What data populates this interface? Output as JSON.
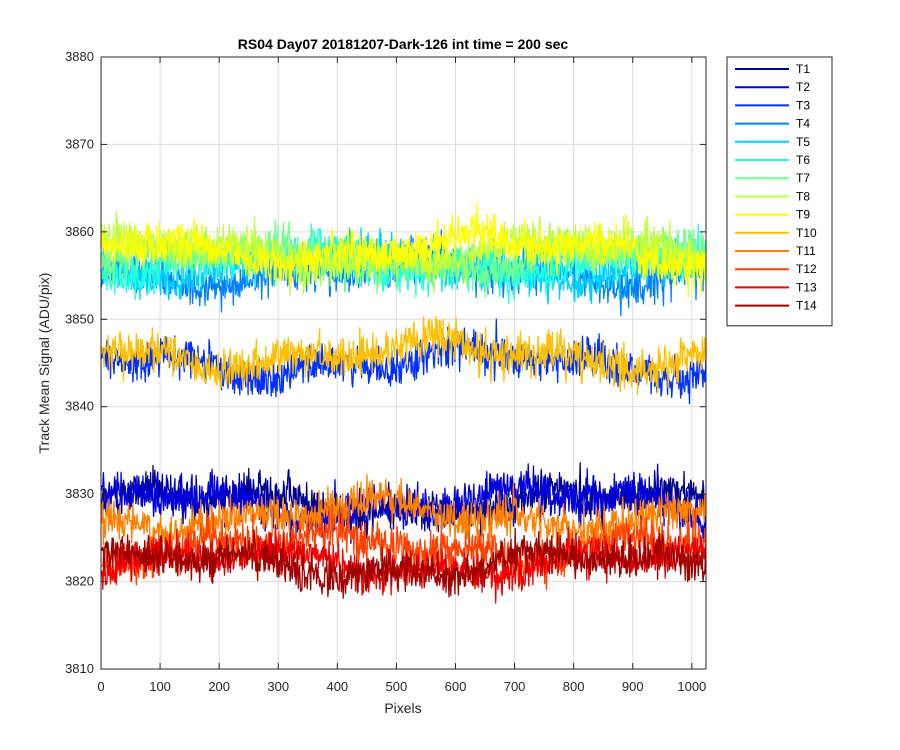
{
  "chart_data": {
    "type": "line",
    "title": "RS04 Day07 20181207-Dark-126 int time = 200 sec",
    "xlabel": "Pixels",
    "ylabel": "Track Mean Signal (ADU/pix)",
    "xlim": [
      0,
      1024
    ],
    "ylim": [
      3810,
      3880
    ],
    "xticks": [
      0,
      100,
      200,
      300,
      400,
      500,
      600,
      700,
      800,
      900,
      1000
    ],
    "yticks": [
      3810,
      3820,
      3830,
      3840,
      3850,
      3860,
      3870,
      3880
    ],
    "grid": true,
    "legend_position": "outside-right-top",
    "x_range_points": [
      1,
      1024
    ],
    "series": [
      {
        "name": "T1",
        "color": "#00008F",
        "level": 3829.0,
        "noise": 5.0
      },
      {
        "name": "T2",
        "color": "#0000DF",
        "level": 3829.0,
        "noise": 5.0
      },
      {
        "name": "T3",
        "color": "#0030FF",
        "level": 3845.0,
        "noise": 5.0
      },
      {
        "name": "T4",
        "color": "#0080FF",
        "level": 3855.5,
        "noise": 5.0
      },
      {
        "name": "T5",
        "color": "#00CFFF",
        "level": 3856.0,
        "noise": 5.0
      },
      {
        "name": "T6",
        "color": "#20FFDF",
        "level": 3856.5,
        "noise": 5.0
      },
      {
        "name": "T7",
        "color": "#70FF8F",
        "level": 3857.0,
        "noise": 5.0
      },
      {
        "name": "T8",
        "color": "#BFFF40",
        "level": 3857.5,
        "noise": 5.0
      },
      {
        "name": "T9",
        "color": "#FFFF00",
        "level": 3858.0,
        "noise": 5.0
      },
      {
        "name": "T10",
        "color": "#FFBF00",
        "level": 3846.0,
        "noise": 5.0
      },
      {
        "name": "T11",
        "color": "#FF8000",
        "level": 3827.5,
        "noise": 5.0
      },
      {
        "name": "T12",
        "color": "#FF4000",
        "level": 3824.0,
        "noise": 5.0
      },
      {
        "name": "T13",
        "color": "#F00000",
        "level": 3822.0,
        "noise": 4.5
      },
      {
        "name": "T14",
        "color": "#9F0000",
        "level": 3822.0,
        "noise": 4.5
      }
    ]
  }
}
